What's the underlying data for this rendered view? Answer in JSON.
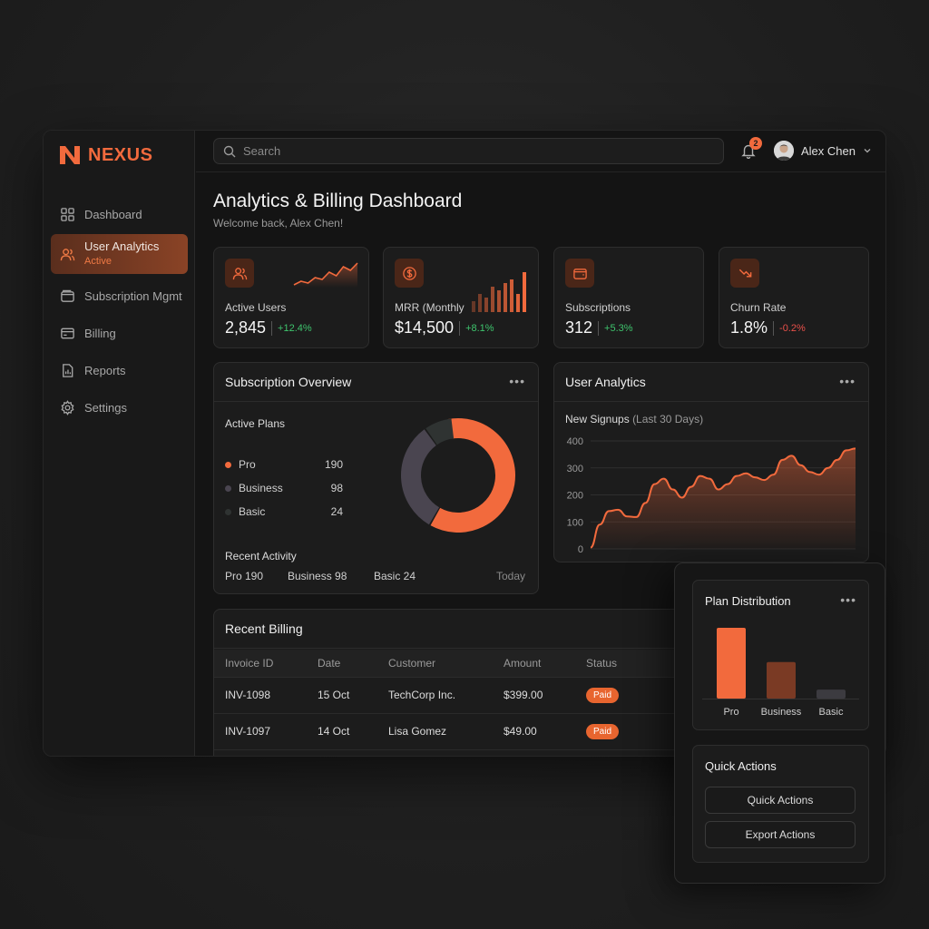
{
  "brand": {
    "name": "NEXUS",
    "accent": "#f26a3d"
  },
  "sidebar": {
    "items": [
      {
        "label": "Dashboard",
        "icon": "grid-icon"
      },
      {
        "label": "User Analytics",
        "sub": "Active",
        "icon": "users-icon"
      },
      {
        "label": "Subscription Mgmt",
        "icon": "wallet-icon"
      },
      {
        "label": "Billing",
        "icon": "card-icon"
      },
      {
        "label": "Reports",
        "icon": "report-icon"
      },
      {
        "label": "Settings",
        "icon": "gear-icon"
      }
    ]
  },
  "topbar": {
    "search_placeholder": "Search",
    "notification_count": "2",
    "user_name": "Alex Chen"
  },
  "page": {
    "title": "Analytics & Billing Dashboard",
    "subtitle": "Welcome back, Alex Chen!"
  },
  "kpis": [
    {
      "label": "Active Users",
      "value": "2,845",
      "delta": "+12.4%",
      "trend": "up",
      "icon": "users-icon"
    },
    {
      "label": "MRR (Monthly",
      "value": "$14,500",
      "delta": "+8.1%",
      "trend": "up",
      "icon": "dollar-icon"
    },
    {
      "label": "Subscriptions",
      "value": "312",
      "delta": "+5.3%",
      "trend": "up",
      "icon": "wallet-icon"
    },
    {
      "label": "Churn Rate",
      "value": "1.8%",
      "delta": "-0.2%",
      "trend": "down",
      "icon": "trend-down-icon"
    }
  ],
  "subscription_overview": {
    "title": "Subscription Overview",
    "plans_title": "Active Plans",
    "plans": [
      {
        "name": "Pro",
        "value": "190",
        "color": "#f26a3d"
      },
      {
        "name": "Business",
        "value": "98",
        "color": "#4a4550"
      },
      {
        "name": "Basic",
        "value": "24",
        "color": "#2f3332"
      }
    ],
    "recent_label": "Recent Activity",
    "recent": {
      "pro": "Pro 190",
      "business": "Business 98",
      "basic": "Basic 24",
      "when": "Today"
    }
  },
  "user_analytics": {
    "title": "User Analytics",
    "chart_title": "New Signups",
    "chart_subtitle": "(Last 30 Days)"
  },
  "recent_billing": {
    "title": "Recent Billing",
    "columns": [
      "Invoice ID",
      "Date",
      "Customer",
      "Amount",
      "Status"
    ],
    "rows": [
      {
        "id": "INV-1098",
        "date": "15 Oct",
        "customer": "TechCorp Inc.",
        "amount": "$399.00",
        "status": "Paid"
      },
      {
        "id": "INV-1097",
        "date": "14 Oct",
        "customer": "Lisa Gomez",
        "amount": "$49.00",
        "status": "Paid"
      }
    ]
  },
  "plan_distribution": {
    "title": "Plan Distribution"
  },
  "quick_actions": {
    "title": "Quick Actions",
    "buttons": [
      "Quick Actions",
      "Export Actions"
    ]
  },
  "chart_data": [
    {
      "type": "pie",
      "categories": [
        "Pro",
        "Business",
        "Basic"
      ],
      "values": [
        190,
        98,
        24
      ],
      "colors": [
        "#f26a3d",
        "#4a4550",
        "#2f3332"
      ]
    },
    {
      "type": "area",
      "xlabel": "",
      "ylabel": "",
      "ylim": [
        0,
        400
      ],
      "yticks": [
        0,
        100,
        200,
        300,
        400
      ],
      "x": [
        1,
        2,
        3,
        4,
        5,
        6,
        7,
        8,
        9,
        10,
        11,
        12,
        13,
        14,
        15,
        16,
        17,
        18,
        19,
        20,
        21,
        22,
        23,
        24,
        25,
        26,
        27,
        28,
        29,
        30
      ],
      "values": [
        5,
        90,
        140,
        145,
        120,
        118,
        170,
        240,
        260,
        220,
        190,
        230,
        270,
        260,
        220,
        240,
        270,
        280,
        265,
        255,
        275,
        330,
        345,
        310,
        285,
        275,
        300,
        330,
        365,
        372
      ],
      "color": "#f26a3d",
      "grid": true
    },
    {
      "type": "bar",
      "categories": [
        "Pro",
        "Business",
        "Basic"
      ],
      "values": [
        190,
        98,
        24
      ],
      "colors": [
        "#f26a3d",
        "#7a3a24",
        "#3c3b40"
      ]
    },
    {
      "type": "line",
      "values": [
        6,
        8,
        7,
        10,
        9,
        13,
        11,
        16,
        14,
        18
      ],
      "color": "#f26a3d"
    },
    {
      "type": "bar",
      "values": [
        3,
        5,
        4,
        7,
        6,
        8,
        9,
        5,
        11
      ],
      "color": "#f26a3d"
    }
  ]
}
